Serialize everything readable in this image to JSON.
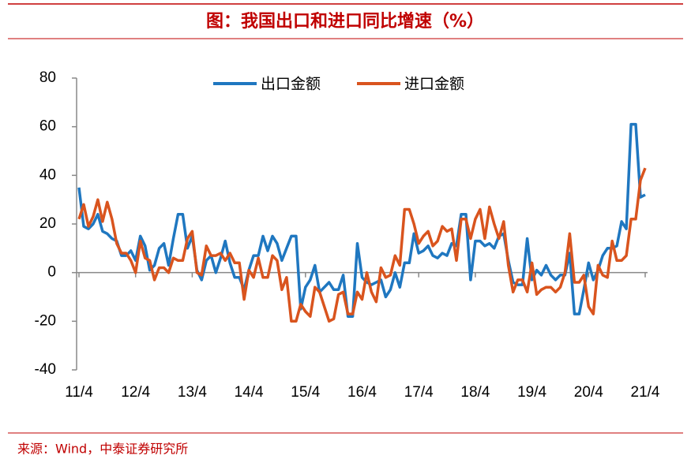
{
  "chart_data": {
    "type": "line",
    "title": "图：我国出口和进口同比增速（%）",
    "source": "来源：Wind，中泰证券研究所",
    "categories": [
      "11/4",
      null,
      null,
      null,
      null,
      null,
      null,
      null,
      null,
      null,
      null,
      null,
      "12/4",
      null,
      null,
      null,
      null,
      null,
      null,
      null,
      null,
      null,
      null,
      null,
      "13/4",
      null,
      null,
      null,
      null,
      null,
      null,
      null,
      null,
      null,
      null,
      null,
      "14/4",
      null,
      null,
      null,
      null,
      null,
      null,
      null,
      null,
      null,
      null,
      null,
      "15/4",
      null,
      null,
      null,
      null,
      null,
      null,
      null,
      null,
      null,
      null,
      null,
      "16/4",
      null,
      null,
      null,
      null,
      null,
      null,
      null,
      null,
      null,
      null,
      null,
      "17/4",
      null,
      null,
      null,
      null,
      null,
      null,
      null,
      null,
      null,
      null,
      null,
      "18/4",
      null,
      null,
      null,
      null,
      null,
      null,
      null,
      null,
      null,
      null,
      null,
      "19/4",
      null,
      null,
      null,
      null,
      null,
      null,
      null,
      null,
      null,
      null,
      null,
      "20/4",
      null,
      null,
      null,
      null,
      null,
      null,
      null,
      null,
      null,
      null,
      null,
      "21/4"
    ],
    "series": [
      {
        "name": "出口金额",
        "color": "#1f77c0",
        "values": [
          35,
          19,
          18,
          20,
          24,
          17,
          16,
          14,
          13,
          7,
          7,
          9,
          5,
          15,
          11,
          1,
          3,
          10,
          12,
          3,
          14,
          24,
          24,
          10,
          15,
          1,
          -3,
          5,
          7,
          0,
          6,
          13,
          4,
          -2,
          -2,
          -7,
          1,
          7,
          7,
          15,
          9,
          15,
          12,
          5,
          10,
          15,
          15,
          -15,
          -6,
          -3,
          3,
          -8,
          -6,
          -4,
          -7,
          -7,
          -1,
          -18,
          -18,
          12,
          -2,
          -4,
          -5,
          -4,
          -3,
          -10,
          -7,
          0,
          -6,
          4,
          4,
          16,
          8,
          9,
          11,
          7,
          6,
          8,
          7,
          12,
          11,
          24,
          24,
          -3,
          13,
          13,
          11,
          12,
          10,
          15,
          16,
          5,
          -4,
          -5,
          -5,
          14,
          -3,
          1,
          -1,
          3,
          -1,
          -3,
          -1,
          -1,
          8,
          -17,
          -17,
          -7,
          4,
          -3,
          1,
          7,
          10,
          10,
          11,
          21,
          18,
          61,
          61,
          31,
          32
        ]
      },
      {
        "name": "进口金额",
        "color": "#d9541e",
        "values": [
          22,
          28,
          19,
          23,
          30,
          21,
          29,
          22,
          12,
          8,
          8,
          5,
          0,
          13,
          6,
          5,
          -3,
          2,
          2,
          0,
          6,
          5,
          5,
          14,
          17,
          0,
          -1,
          11,
          7,
          7,
          8,
          5,
          8,
          4,
          4,
          -11,
          1,
          -2,
          6,
          -2,
          -2,
          7,
          5,
          -7,
          -2,
          -20,
          -20,
          -13,
          -16,
          -18,
          -6,
          -8,
          -14,
          -20,
          -19,
          -9,
          -8,
          -17,
          -17,
          -8,
          -11,
          0,
          -8,
          -12,
          2,
          -2,
          -1,
          7,
          3,
          26,
          26,
          20,
          12,
          15,
          17,
          11,
          13,
          19,
          17,
          18,
          5,
          22,
          22,
          14,
          22,
          26,
          14,
          27,
          20,
          14,
          21,
          3,
          -8,
          -3,
          -3,
          -8,
          4,
          -9,
          -7,
          -6,
          -6,
          -8,
          -6,
          0,
          16,
          -4,
          -4,
          -1,
          -14,
          -17,
          3,
          -1,
          -2,
          13,
          5,
          5,
          7,
          22,
          22,
          38,
          43
        ]
      }
    ],
    "ylim": [
      -40,
      80
    ],
    "yticks": [
      -40,
      -20,
      0,
      20,
      40,
      60,
      80
    ]
  }
}
